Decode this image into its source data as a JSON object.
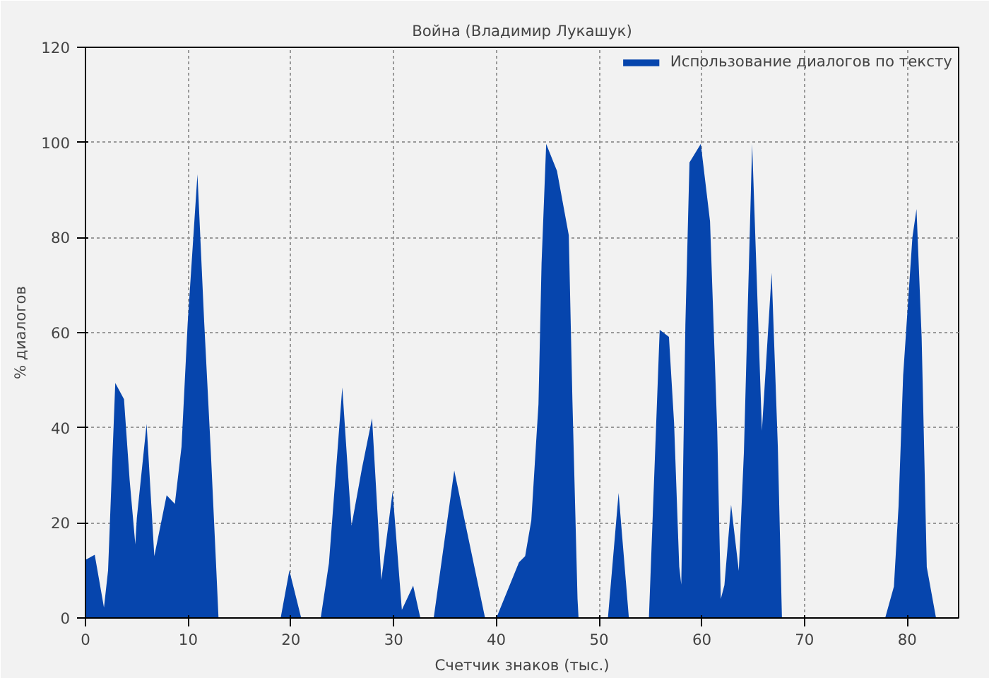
{
  "chart_data": {
    "type": "area",
    "title": "Война (Владимир Лукашук)",
    "xlabel": "Счетчик знаков (тыс.)",
    "ylabel": "% диалогов",
    "xlim": [
      0,
      85
    ],
    "ylim": [
      0,
      120
    ],
    "xticks": [
      0,
      10,
      20,
      30,
      40,
      50,
      60,
      70,
      80
    ],
    "yticks": [
      0,
      20,
      40,
      60,
      80,
      100,
      120
    ],
    "grid": true,
    "legend": "top right",
    "marker": "none",
    "series": [
      {
        "name": "Использование диалогов по тексту",
        "color": "#0645ad",
        "x": [
          0,
          0.9,
          1.8,
          2.2,
          2.9,
          3.75,
          4.3,
          4.85,
          5.0,
          5.95,
          6.7,
          7.9,
          8.7,
          9.35,
          9.95,
          10.9,
          11.55,
          12.2,
          12.75,
          12.95,
          19.0,
          19.85,
          21.0,
          22.9,
          23.7,
          25.0,
          25.9,
          26.9,
          27.9,
          28.8,
          29.9,
          30.8,
          31.9,
          32.6,
          33.9,
          35.9,
          38.9,
          40.0,
          42.2,
          42.8,
          43.4,
          44.1,
          44.4,
          44.85,
          45.9,
          47.05,
          47.4,
          47.9,
          48.0,
          50.86,
          51.9,
          52.9,
          54.85,
          55.9,
          56.8,
          57.3,
          57.8,
          58.0,
          58.4,
          58.8,
          59.9,
          60.8,
          61.5,
          61.85,
          62.2,
          62.85,
          63.6,
          64.1,
          64.9,
          65.85,
          66.8,
          67.4,
          67.8,
          77.85,
          78.7,
          79.15,
          79.6,
          80.5,
          80.9,
          81.4,
          81.9,
          82.8
        ],
        "values": [
          12.2,
          13.3,
          2.2,
          10,
          49.4,
          46,
          29,
          15.5,
          21,
          40.8,
          13,
          25.8,
          24,
          36,
          62,
          93.3,
          62.5,
          35,
          9.5,
          0,
          0,
          10,
          0,
          0,
          11.5,
          48.5,
          19.4,
          31.3,
          42,
          8,
          26.6,
          1.7,
          6.8,
          0,
          0,
          31,
          0,
          0,
          11.7,
          13,
          20.5,
          45,
          74.6,
          99.7,
          94,
          80.5,
          46,
          4,
          0,
          0,
          26.3,
          0,
          0,
          60.6,
          59.1,
          41,
          10.8,
          7,
          61.6,
          95.8,
          99.7,
          83.4,
          39.4,
          4,
          6.9,
          23.8,
          9.9,
          35,
          99.7,
          39.4,
          72.6,
          36,
          0,
          0,
          6.6,
          23.4,
          51,
          80,
          86,
          59,
          10.7,
          0
        ]
      }
    ]
  }
}
